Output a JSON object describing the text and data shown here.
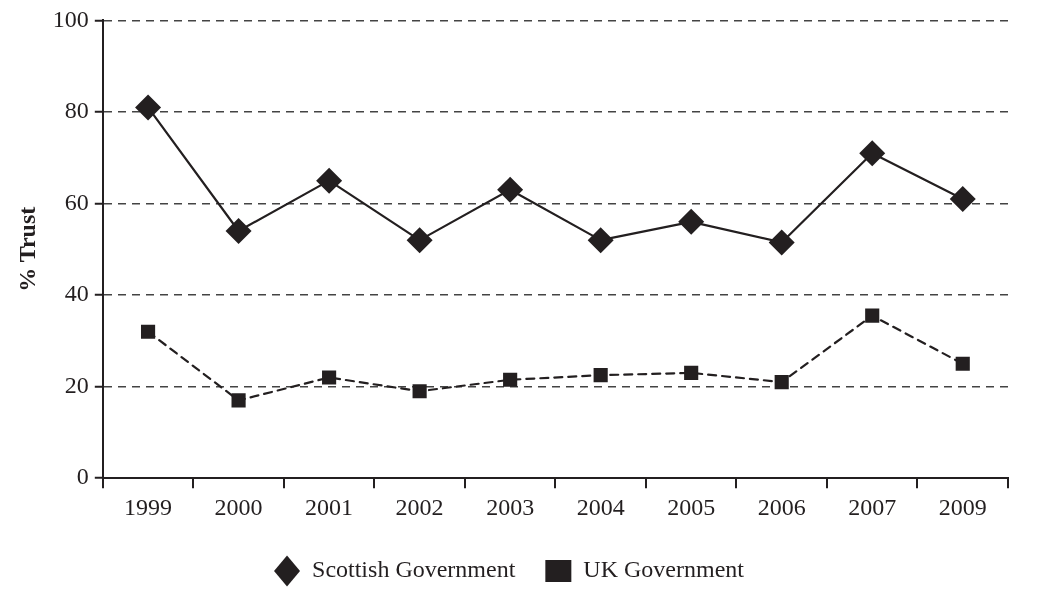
{
  "chart_data": {
    "type": "line",
    "ylabel": "% Trust",
    "categories": [
      "1999",
      "2000",
      "2001",
      "2002",
      "2003",
      "2004",
      "2005",
      "2006",
      "2007",
      "2009"
    ],
    "series": [
      {
        "name": "Scottish Government",
        "color": "#231f20",
        "marker": "diamond",
        "line_style": "solid",
        "values": [
          81,
          54,
          65,
          52,
          63,
          52,
          56,
          51.5,
          71,
          61
        ]
      },
      {
        "name": "UK Government",
        "color": "#231f20",
        "marker": "square",
        "line_style": "dashed",
        "values": [
          32,
          17,
          22,
          19,
          21.5,
          22.5,
          23,
          21,
          35.5,
          25
        ]
      }
    ],
    "ylim": [
      0,
      100
    ],
    "yticks": [
      0,
      20,
      40,
      60,
      80,
      100
    ],
    "grid": "y",
    "legend": "bottom"
  }
}
